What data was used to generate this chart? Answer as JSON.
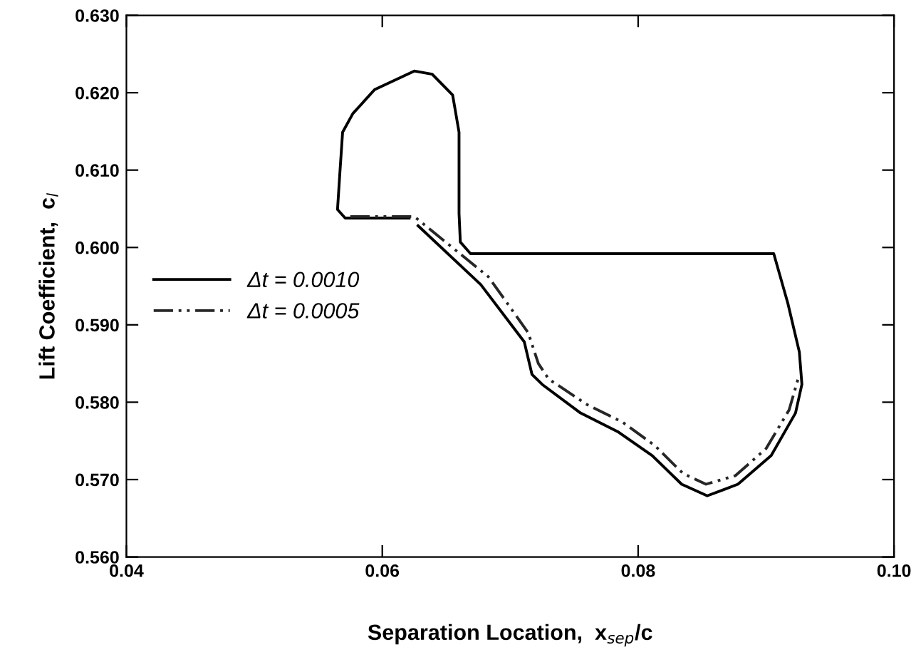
{
  "chart_data": {
    "type": "line",
    "xlabel": "Separation Location,  x$_{sep}$/c",
    "ylabel": "Lift Coefficient,  c$_{l}$",
    "xlim": [
      0.04,
      0.1
    ],
    "ylim": [
      0.56,
      0.63
    ],
    "xticks": [
      {
        "value": 0.04,
        "label": "0.04"
      },
      {
        "value": 0.06,
        "label": "0.06"
      },
      {
        "value": 0.08,
        "label": "0.08"
      },
      {
        "value": 0.1,
        "label": "0.10"
      }
    ],
    "yticks": [
      {
        "value": 0.56,
        "label": "0.560"
      },
      {
        "value": 0.57,
        "label": "0.570"
      },
      {
        "value": 0.58,
        "label": "0.580"
      },
      {
        "value": 0.59,
        "label": "0.590"
      },
      {
        "value": 0.6,
        "label": "0.600"
      },
      {
        "value": 0.61,
        "label": "0.610"
      },
      {
        "value": 0.62,
        "label": "0.620"
      },
      {
        "value": 0.63,
        "label": "0.630"
      }
    ],
    "grid": false,
    "legend": "left",
    "marker": "none",
    "series": [
      {
        "name": "Δt = 0.0010",
        "color": "#000000",
        "line_style": "solid",
        "x": [
          0.0621,
          0.0571,
          0.0565,
          0.0567,
          0.0569,
          0.0577,
          0.0594,
          0.0625,
          0.0639,
          0.0655,
          0.066,
          0.066,
          0.0661,
          0.0669,
          0.0906,
          0.0917,
          0.0926,
          0.0928,
          0.0923,
          0.0904,
          0.0878,
          0.0854,
          0.0834,
          0.0811,
          0.0784,
          0.0755,
          0.0725,
          0.0717,
          0.0711,
          0.0677,
          0.0628
        ],
        "values": [
          0.6038,
          0.6038,
          0.6049,
          0.61,
          0.6149,
          0.6173,
          0.6204,
          0.6228,
          0.6224,
          0.6197,
          0.6149,
          0.6044,
          0.6007,
          0.5992,
          0.5992,
          0.5928,
          0.5865,
          0.5823,
          0.5786,
          0.5731,
          0.5694,
          0.5679,
          0.5694,
          0.5731,
          0.5762,
          0.5786,
          0.5823,
          0.5836,
          0.5878,
          0.5952,
          0.6028
        ]
      },
      {
        "name": "Δt = 0.0005",
        "color": "#262626",
        "line_style": "dashdot",
        "x": [
          0.0575,
          0.0625,
          0.0683,
          0.0714,
          0.0722,
          0.073,
          0.076,
          0.0788,
          0.0813,
          0.0835,
          0.0853,
          0.0876,
          0.09,
          0.0918,
          0.0925
        ],
        "values": [
          0.604,
          0.604,
          0.5962,
          0.589,
          0.585,
          0.583,
          0.5797,
          0.5774,
          0.5744,
          0.5708,
          0.5694,
          0.5705,
          0.574,
          0.579,
          0.583
        ]
      }
    ]
  }
}
